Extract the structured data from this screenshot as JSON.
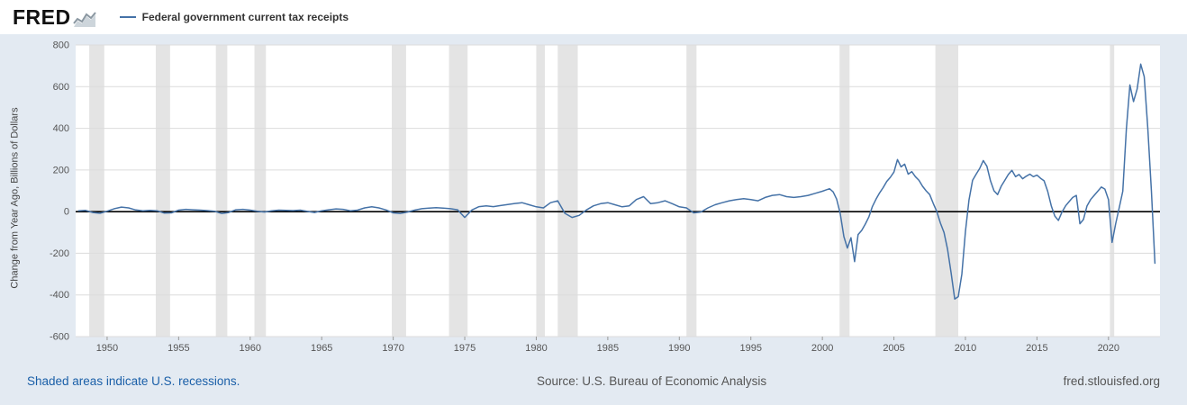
{
  "header": {
    "logo_text": "FRED",
    "legend_label": "Federal government current tax receipts"
  },
  "footer": {
    "left": "Shaded areas indicate U.S. recessions.",
    "center": "Source: U.S. Bureau of Economic Analysis",
    "right": "fred.stlouisfed.org"
  },
  "chart_data": {
    "type": "line",
    "title": "Federal government current tax receipts",
    "xlabel": "",
    "ylabel": "Change from Year Ago, Billions of Dollars",
    "xlim": [
      1947.8,
      2023.6
    ],
    "ylim": [
      -600,
      800
    ],
    "yticks": [
      800,
      600,
      400,
      200,
      0,
      -200,
      -400,
      -600
    ],
    "xticks": [
      1950,
      1955,
      1960,
      1965,
      1970,
      1975,
      1980,
      1985,
      1990,
      1995,
      2000,
      2005,
      2010,
      2015,
      2020
    ],
    "grid": true,
    "legend_position": "top-left",
    "recession_color": "#e4e4e4",
    "recessions": [
      [
        1948.75,
        1949.8
      ],
      [
        1953.4,
        1954.4
      ],
      [
        1957.6,
        1958.4
      ],
      [
        1960.3,
        1961.1
      ],
      [
        1969.9,
        1970.9
      ],
      [
        1973.9,
        1975.2
      ],
      [
        1980.0,
        1980.6
      ],
      [
        1981.5,
        1982.9
      ],
      [
        1990.5,
        1991.2
      ],
      [
        2001.2,
        2001.9
      ],
      [
        2007.9,
        2009.5
      ],
      [
        2020.1,
        2020.4
      ]
    ],
    "series": [
      {
        "name": "Federal government current tax receipts",
        "color": "#4572a7",
        "points": [
          [
            1948,
            4
          ],
          [
            1948.5,
            6
          ],
          [
            1949,
            -4
          ],
          [
            1949.5,
            -8
          ],
          [
            1950,
            2
          ],
          [
            1950.5,
            14
          ],
          [
            1951,
            22
          ],
          [
            1951.5,
            18
          ],
          [
            1952,
            8
          ],
          [
            1952.5,
            4
          ],
          [
            1953,
            6
          ],
          [
            1953.5,
            4
          ],
          [
            1954,
            -7
          ],
          [
            1954.5,
            -6
          ],
          [
            1955,
            7
          ],
          [
            1955.5,
            11
          ],
          [
            1956,
            9
          ],
          [
            1956.5,
            7
          ],
          [
            1957,
            5
          ],
          [
            1957.5,
            2
          ],
          [
            1958,
            -9
          ],
          [
            1958.5,
            -4
          ],
          [
            1959,
            9
          ],
          [
            1959.5,
            11
          ],
          [
            1960,
            7
          ],
          [
            1960.5,
            2
          ],
          [
            1961,
            -2
          ],
          [
            1961.5,
            4
          ],
          [
            1962,
            7
          ],
          [
            1962.5,
            6
          ],
          [
            1963,
            5
          ],
          [
            1963.5,
            7
          ],
          [
            1964,
            1
          ],
          [
            1964.5,
            -4
          ],
          [
            1965,
            4
          ],
          [
            1965.5,
            9
          ],
          [
            1966,
            13
          ],
          [
            1966.5,
            11
          ],
          [
            1967,
            4
          ],
          [
            1967.5,
            7
          ],
          [
            1968,
            18
          ],
          [
            1968.5,
            23
          ],
          [
            1969,
            18
          ],
          [
            1969.5,
            8
          ],
          [
            1970,
            -6
          ],
          [
            1970.5,
            -9
          ],
          [
            1971,
            -2
          ],
          [
            1971.5,
            7
          ],
          [
            1972,
            14
          ],
          [
            1972.5,
            17
          ],
          [
            1973,
            19
          ],
          [
            1973.5,
            17
          ],
          [
            1974,
            14
          ],
          [
            1974.5,
            9
          ],
          [
            1975,
            -28
          ],
          [
            1975.5,
            8
          ],
          [
            1976,
            24
          ],
          [
            1976.5,
            28
          ],
          [
            1977,
            24
          ],
          [
            1977.5,
            29
          ],
          [
            1978,
            34
          ],
          [
            1978.5,
            39
          ],
          [
            1979,
            43
          ],
          [
            1979.5,
            33
          ],
          [
            1980,
            23
          ],
          [
            1980.5,
            18
          ],
          [
            1981,
            43
          ],
          [
            1981.5,
            52
          ],
          [
            1982,
            -8
          ],
          [
            1982.5,
            -28
          ],
          [
            1983,
            -18
          ],
          [
            1983.5,
            8
          ],
          [
            1984,
            28
          ],
          [
            1984.5,
            38
          ],
          [
            1985,
            43
          ],
          [
            1985.5,
            33
          ],
          [
            1986,
            23
          ],
          [
            1986.5,
            28
          ],
          [
            1987,
            58
          ],
          [
            1987.5,
            72
          ],
          [
            1988,
            38
          ],
          [
            1988.5,
            43
          ],
          [
            1989,
            52
          ],
          [
            1989.5,
            38
          ],
          [
            1990,
            23
          ],
          [
            1990.5,
            18
          ],
          [
            1991,
            -6
          ],
          [
            1991.5,
            -2
          ],
          [
            1992,
            18
          ],
          [
            1992.5,
            33
          ],
          [
            1993,
            43
          ],
          [
            1993.5,
            52
          ],
          [
            1994,
            58
          ],
          [
            1994.5,
            62
          ],
          [
            1995,
            58
          ],
          [
            1995.5,
            52
          ],
          [
            1996,
            68
          ],
          [
            1996.5,
            78
          ],
          [
            1997,
            82
          ],
          [
            1997.5,
            72
          ],
          [
            1998,
            68
          ],
          [
            1998.5,
            72
          ],
          [
            1999,
            78
          ],
          [
            1999.5,
            88
          ],
          [
            2000,
            98
          ],
          [
            2000.25,
            104
          ],
          [
            2000.5,
            110
          ],
          [
            2000.75,
            95
          ],
          [
            2001,
            60
          ],
          [
            2001.25,
            -10
          ],
          [
            2001.5,
            -120
          ],
          [
            2001.75,
            -175
          ],
          [
            2002,
            -125
          ],
          [
            2002.25,
            -240
          ],
          [
            2002.5,
            -110
          ],
          [
            2002.75,
            -90
          ],
          [
            2003,
            -60
          ],
          [
            2003.25,
            -25
          ],
          [
            2003.5,
            25
          ],
          [
            2003.75,
            60
          ],
          [
            2004,
            90
          ],
          [
            2004.25,
            115
          ],
          [
            2004.5,
            145
          ],
          [
            2004.75,
            165
          ],
          [
            2005,
            190
          ],
          [
            2005.25,
            250
          ],
          [
            2005.5,
            215
          ],
          [
            2005.75,
            228
          ],
          [
            2006,
            180
          ],
          [
            2006.25,
            192
          ],
          [
            2006.5,
            168
          ],
          [
            2006.75,
            150
          ],
          [
            2007,
            122
          ],
          [
            2007.25,
            100
          ],
          [
            2007.5,
            82
          ],
          [
            2007.75,
            40
          ],
          [
            2008,
            0
          ],
          [
            2008.25,
            -55
          ],
          [
            2008.5,
            -100
          ],
          [
            2008.75,
            -180
          ],
          [
            2009,
            -295
          ],
          [
            2009.25,
            -420
          ],
          [
            2009.5,
            -408
          ],
          [
            2009.75,
            -300
          ],
          [
            2010,
            -95
          ],
          [
            2010.25,
            55
          ],
          [
            2010.5,
            150
          ],
          [
            2010.75,
            180
          ],
          [
            2011,
            208
          ],
          [
            2011.25,
            245
          ],
          [
            2011.5,
            218
          ],
          [
            2011.75,
            148
          ],
          [
            2012,
            100
          ],
          [
            2012.25,
            82
          ],
          [
            2012.5,
            122
          ],
          [
            2012.75,
            150
          ],
          [
            2013,
            178
          ],
          [
            2013.25,
            198
          ],
          [
            2013.5,
            168
          ],
          [
            2013.75,
            178
          ],
          [
            2014,
            158
          ],
          [
            2014.25,
            170
          ],
          [
            2014.5,
            180
          ],
          [
            2014.75,
            168
          ],
          [
            2015,
            175
          ],
          [
            2015.25,
            160
          ],
          [
            2015.5,
            148
          ],
          [
            2015.75,
            98
          ],
          [
            2016,
            28
          ],
          [
            2016.25,
            -22
          ],
          [
            2016.5,
            -42
          ],
          [
            2016.75,
            -2
          ],
          [
            2017,
            28
          ],
          [
            2017.25,
            48
          ],
          [
            2017.5,
            68
          ],
          [
            2017.75,
            78
          ],
          [
            2018,
            -58
          ],
          [
            2018.25,
            -38
          ],
          [
            2018.5,
            28
          ],
          [
            2018.75,
            58
          ],
          [
            2019,
            78
          ],
          [
            2019.25,
            98
          ],
          [
            2019.5,
            118
          ],
          [
            2019.75,
            108
          ],
          [
            2020,
            58
          ],
          [
            2020.25,
            -148
          ],
          [
            2020.5,
            -58
          ],
          [
            2020.75,
            18
          ],
          [
            2021,
            98
          ],
          [
            2021.25,
            398
          ],
          [
            2021.5,
            608
          ],
          [
            2021.75,
            528
          ],
          [
            2022,
            588
          ],
          [
            2022.25,
            708
          ],
          [
            2022.5,
            648
          ],
          [
            2022.75,
            398
          ],
          [
            2023,
            98
          ],
          [
            2023.25,
            -248
          ]
        ]
      }
    ]
  }
}
